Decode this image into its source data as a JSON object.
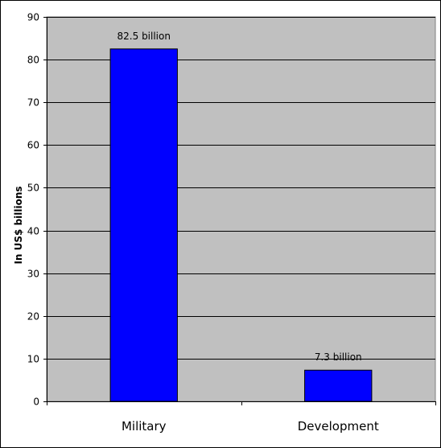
{
  "chart_data": {
    "type": "bar",
    "categories": [
      "Military",
      "Development"
    ],
    "values": [
      82.5,
      7.3
    ],
    "data_labels": [
      "82.5 billion",
      "7.3 billion"
    ],
    "title": "",
    "xlabel": "",
    "ylabel": "In US$ billions",
    "ylim": [
      0,
      90
    ],
    "yticks": [
      0,
      10,
      20,
      30,
      40,
      50,
      60,
      70,
      80,
      90
    ],
    "grid": true,
    "legend": "none",
    "colors": {
      "bar": "#0000ff",
      "bar_edge": "#000000",
      "plot_background": "#c0c0c0",
      "gridline": "#000000"
    }
  }
}
